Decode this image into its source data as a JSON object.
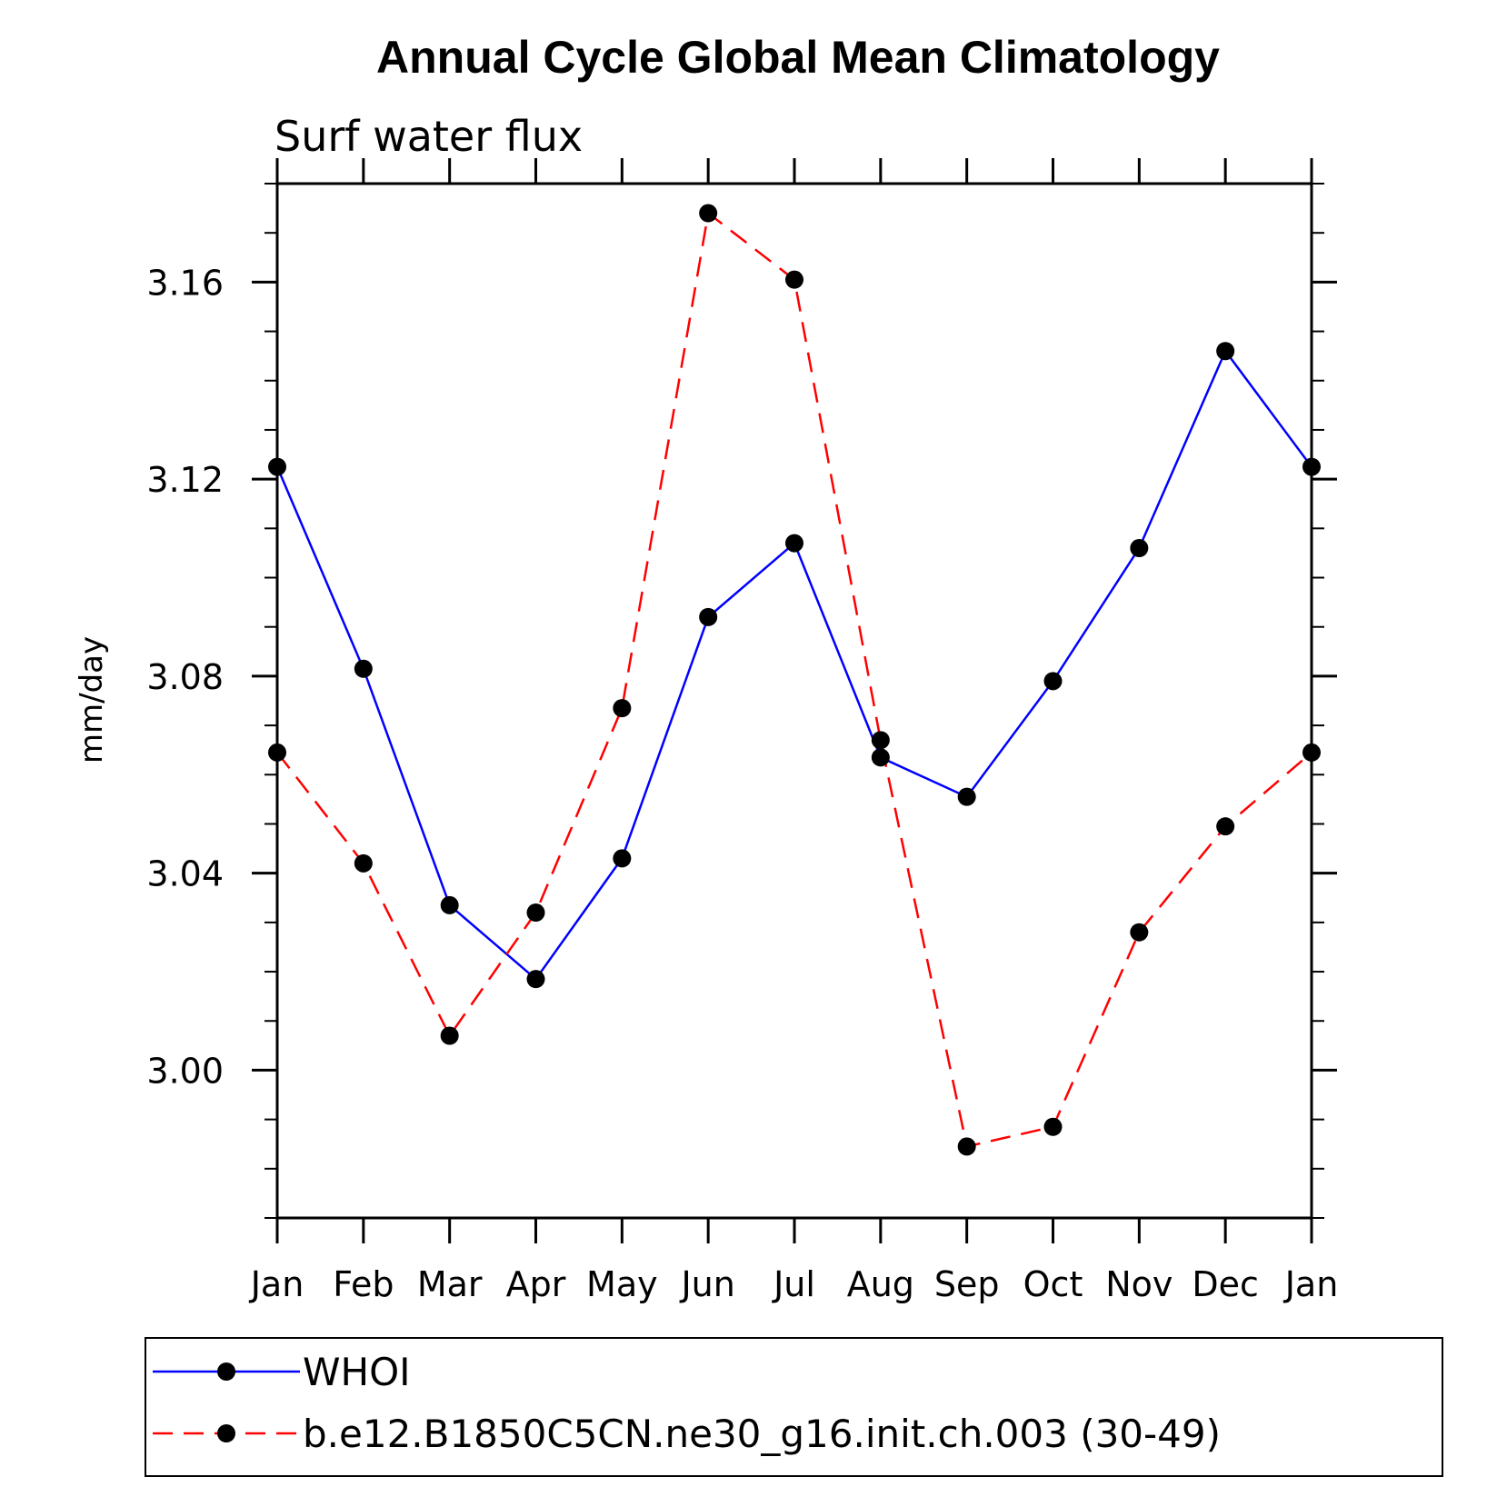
{
  "chart_data": {
    "type": "line",
    "title": "Annual Cycle Global Mean Climatology",
    "subtitle": "Surf water flux",
    "xlabel": "",
    "ylabel": "mm/day",
    "categories": [
      "Jan",
      "Feb",
      "Mar",
      "Apr",
      "May",
      "Jun",
      "Jul",
      "Aug",
      "Sep",
      "Oct",
      "Nov",
      "Dec",
      "Jan"
    ],
    "ylim": [
      2.97,
      3.18
    ],
    "yticks": [
      "3.00",
      "3.04",
      "3.08",
      "3.12",
      "3.16"
    ],
    "grid": false,
    "legend_position": "bottom",
    "series": [
      {
        "name": "WHOI",
        "color": "#0000ff",
        "line_style": "solid",
        "marker": "filled-circle",
        "values": [
          3.1225,
          3.0815,
          3.0335,
          3.0185,
          3.043,
          3.092,
          3.107,
          3.0635,
          3.0555,
          3.079,
          3.106,
          3.146,
          3.1225
        ]
      },
      {
        "name": "b.e12.B1850C5CN.ne30_g16.init.ch.003 (30-49)",
        "color": "#ff0000",
        "line_style": "dashed",
        "marker": "filled-circle",
        "values": [
          3.0645,
          3.042,
          3.007,
          3.032,
          3.0735,
          3.174,
          3.1605,
          3.067,
          2.9845,
          2.9885,
          3.028,
          3.0495,
          3.0645
        ]
      }
    ]
  }
}
